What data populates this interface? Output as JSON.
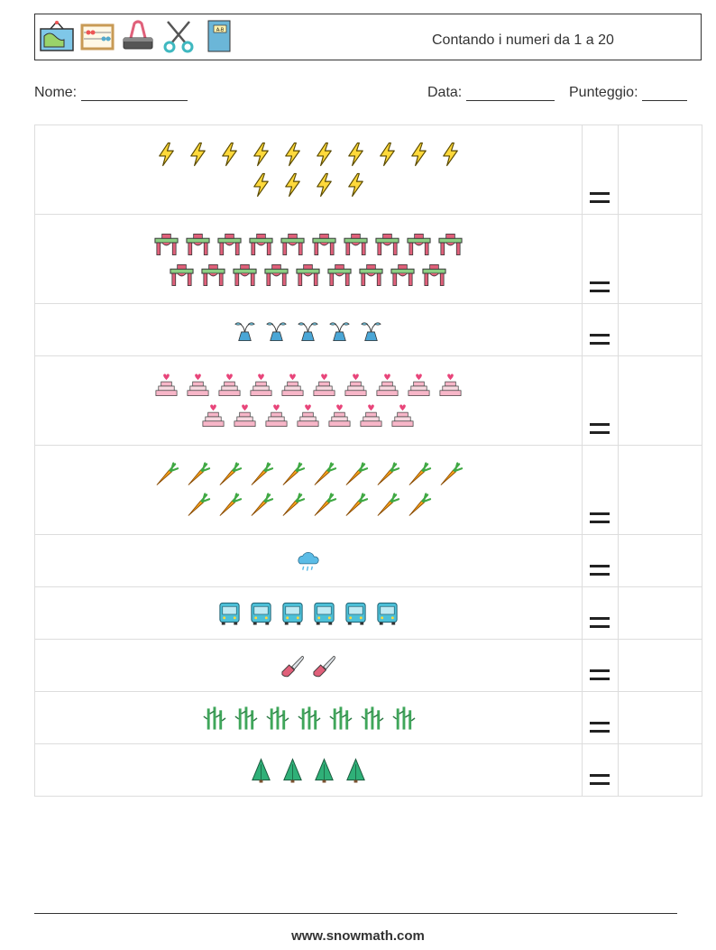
{
  "header": {
    "title": "Contando i numeri da 1 a 20",
    "icons": [
      "map-icon",
      "abacus-icon",
      "binder-clip-icon",
      "scissors-icon",
      "book-icon"
    ]
  },
  "meta": {
    "name_label": "Nome:",
    "date_label": "Data:",
    "score_label": "Punteggio:"
  },
  "rows": [
    {
      "icon": "lightning-icon",
      "count": 14,
      "line1": 10
    },
    {
      "icon": "table-icon",
      "count": 19,
      "line1": 10
    },
    {
      "icon": "plant-vase-icon",
      "count": 5,
      "line1": 5
    },
    {
      "icon": "cake-icon",
      "count": 17,
      "line1": 10
    },
    {
      "icon": "carrot-icon",
      "count": 18,
      "line1": 10
    },
    {
      "icon": "rain-cloud-icon",
      "count": 1,
      "line1": 1
    },
    {
      "icon": "bus-icon",
      "count": 6,
      "line1": 6
    },
    {
      "icon": "chainsaw-icon",
      "count": 2,
      "line1": 2
    },
    {
      "icon": "bamboo-icon",
      "count": 7,
      "line1": 7
    },
    {
      "icon": "tree-icon",
      "count": 4,
      "line1": 4
    }
  ],
  "equals_sign": "=",
  "footer": {
    "url": "www.snowmath.com"
  }
}
